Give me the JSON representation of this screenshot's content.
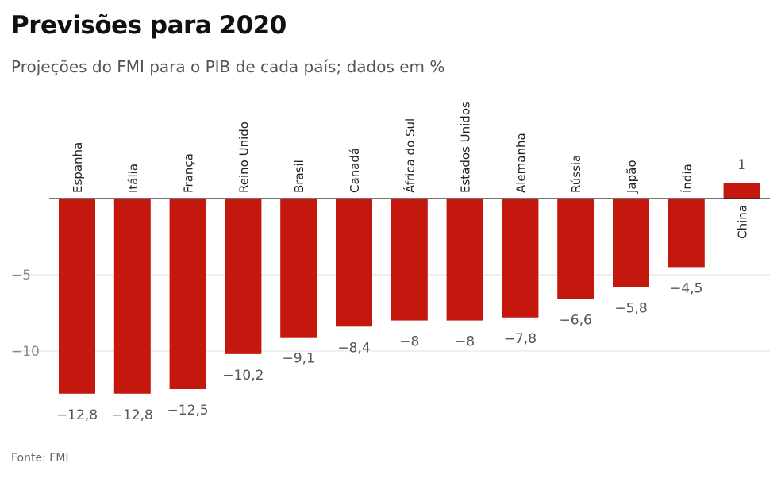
{
  "header": {
    "title": "Previsões para 2020",
    "subtitle": "Projeções do FMI para o PIB de cada país; dados em %"
  },
  "footer": {
    "source": "Fonte: FMI"
  },
  "colors": {
    "bar": "#c4180f",
    "grid": "#e2e2e2",
    "axis": "#222222",
    "tick_label": "#8a8a8a",
    "value_label": "#555555",
    "category_label": "#222222"
  },
  "chart_data": {
    "type": "bar",
    "title": "Previsões para 2020",
    "subtitle": "Projeções do FMI para o PIB de cada país; dados em %",
    "xlabel": "",
    "ylabel": "",
    "categories": [
      "Espanha",
      "Itália",
      "França",
      "Reino Unido",
      "Brasil",
      "Canadá",
      "África do Sul",
      "Estados Unidos",
      "Alemanha",
      "Rússia",
      "Japão",
      "Índia",
      "China"
    ],
    "values": [
      -12.8,
      -12.8,
      -12.5,
      -10.2,
      -9.1,
      -8.4,
      -8,
      -8,
      -7.8,
      -6.6,
      -5.8,
      -4.5,
      1
    ],
    "value_labels": [
      "−12,8",
      "−12,8",
      "−12,5",
      "−10,2",
      "−9,1",
      "−8,4",
      "−8",
      "−8",
      "−7,8",
      "−6,6",
      "−5,8",
      "−4,5",
      "1"
    ],
    "y_ticks": [
      -5,
      -10
    ],
    "y_tick_labels": [
      "−5",
      "−10"
    ],
    "ylim": [
      -13.5,
      2.5
    ],
    "grid": true,
    "legend": "none"
  }
}
